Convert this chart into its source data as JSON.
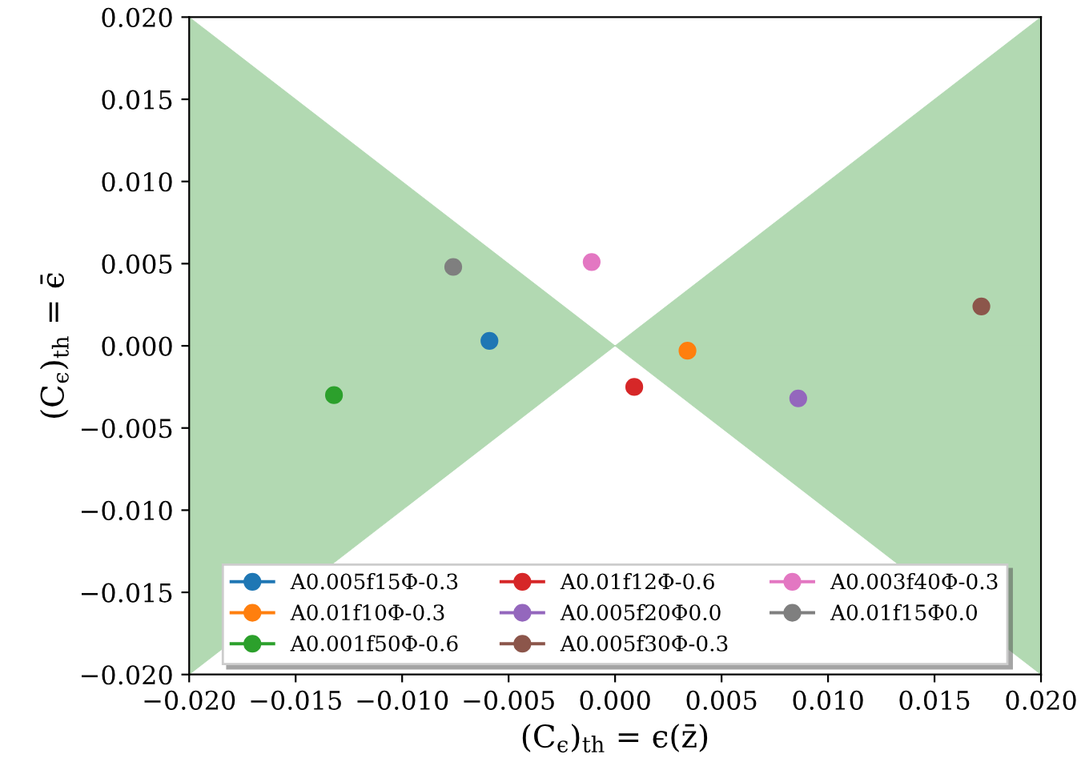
{
  "chart_data": {
    "type": "line",
    "xlabel": "(C$_{ϵ}$)$_{th}$ = ϵ(z̄)",
    "ylabel": "(C$_{ϵ}$)$_{th}$ = ϵ̄",
    "xlim": [
      -0.02,
      0.02
    ],
    "ylim": [
      -0.02,
      0.02
    ],
    "xticks": [
      {
        "value": -0.02,
        "label": "−0.020"
      },
      {
        "value": -0.015,
        "label": "−0.015"
      },
      {
        "value": -0.01,
        "label": "−0.010"
      },
      {
        "value": -0.005,
        "label": "−0.005"
      },
      {
        "value": 0,
        "label": "0.000"
      },
      {
        "value": 0.005,
        "label": "0.005"
      },
      {
        "value": 0.01,
        "label": "0.010"
      },
      {
        "value": 0.015,
        "label": "0.015"
      },
      {
        "value": 0.02,
        "label": "0.020"
      }
    ],
    "yticks": [
      {
        "value": -0.02,
        "label": "−0.020"
      },
      {
        "value": -0.015,
        "label": "−0.015"
      },
      {
        "value": -0.01,
        "label": "−0.010"
      },
      {
        "value": -0.005,
        "label": "−0.005"
      },
      {
        "value": 0,
        "label": "0.000"
      },
      {
        "value": 0.005,
        "label": "0.005"
      },
      {
        "value": 0.01,
        "label": "0.010"
      },
      {
        "value": 0.015,
        "label": "0.015"
      },
      {
        "value": 0.02,
        "label": "0.020"
      }
    ],
    "grid": false,
    "legend": "bottom",
    "marker": "circle",
    "series": [
      {
        "type": "area",
        "marker": "none",
        "color": "#b2d9b2",
        "x": [
          -0.02,
          0
        ],
        "values": [
          0.02,
          0
        ]
      },
      {
        "type": "area",
        "marker": "none",
        "color": "#b2d9b2",
        "x": [
          -0.02,
          0
        ],
        "values": [
          -0.02,
          0
        ]
      },
      {
        "type": "area",
        "marker": "none",
        "color": "#b2d9b2",
        "x": [
          0.02,
          0
        ],
        "values": [
          0.02,
          0
        ]
      },
      {
        "type": "area",
        "marker": "none",
        "color": "#b2d9b2",
        "x": [
          0.02,
          0
        ],
        "values": [
          -0.02,
          0
        ]
      },
      {
        "name": "A0.005f15Φ-0.3",
        "color": "#1f77b4",
        "x": [
          -0.0059
        ],
        "values": [
          0.0003
        ]
      },
      {
        "name": "A0.01f10Φ-0.3",
        "color": "#ff7f0e",
        "x": [
          0.0034
        ],
        "values": [
          -0.0003
        ]
      },
      {
        "name": "A0.001f50Φ-0.6",
        "color": "#2ca02c",
        "x": [
          -0.0132
        ],
        "values": [
          -0.003
        ]
      },
      {
        "name": "A0.01f12Φ-0.6",
        "color": "#d62728",
        "x": [
          0.0009
        ],
        "values": [
          -0.0025
        ]
      },
      {
        "name": "A0.005f20Φ0.0",
        "color": "#9467bd",
        "x": [
          0.0086
        ],
        "values": [
          -0.0032
        ]
      },
      {
        "name": "A0.005f30Φ-0.3",
        "color": "#8c564b",
        "x": [
          0.0172
        ],
        "values": [
          0.0024
        ]
      },
      {
        "name": "A0.003f40Φ-0.3",
        "color": "#e377c2",
        "x": [
          -0.0011
        ],
        "values": [
          0.0051
        ]
      },
      {
        "name": "A0.01f15Φ0.0",
        "color": "#7f7f7f",
        "x": [
          -0.0076
        ],
        "values": [
          0.0048
        ]
      }
    ]
  }
}
